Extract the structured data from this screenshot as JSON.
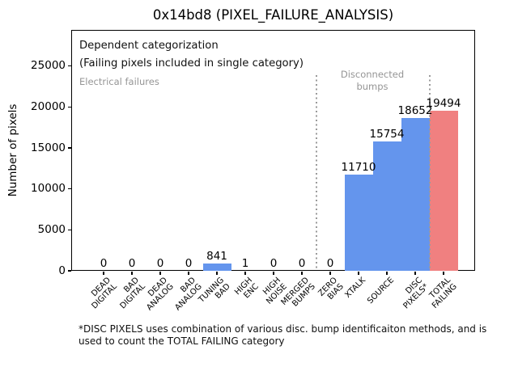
{
  "title": "0x14bd8 (PIXEL_FAILURE_ANALYSIS)",
  "annotations": {
    "dependent": "Dependent categorization\n(Failing pixels included in single category)",
    "electrical": "Electrical failures",
    "disconnected": "Disconnected\nbumps"
  },
  "footnote": "*DISC PIXELS uses combination of various disc. bump identificaiton methods, and is\nused to count the TOTAL FAILING category",
  "colors": {
    "bar_blue": "#6495ED",
    "bar_red": "#F08080",
    "gray_label": "#959595"
  },
  "chart_data": {
    "type": "bar",
    "title": "0x14bd8 (PIXEL_FAILURE_ANALYSIS)",
    "xlabel": "",
    "ylabel": "Number of pixels",
    "categories": [
      "DEAD\nDIGITAL",
      "BAD\nDIGITAL",
      "DEAD\nANALOG",
      "BAD\nANALOG",
      "TUNING\nBAD",
      "HIGH\nENC",
      "HIGH\nNOISE",
      "MERGED\nBUMPS",
      "ZERO\nBIAS",
      "XTALK",
      "SOURCE",
      "DISC\nPIXELS*",
      "TOTAL\nFAILING"
    ],
    "values": [
      0,
      0,
      0,
      0,
      841,
      1,
      0,
      0,
      0,
      11710,
      15754,
      18652,
      19494
    ],
    "bar_colors": [
      "#6495ED",
      "#6495ED",
      "#6495ED",
      "#6495ED",
      "#6495ED",
      "#6495ED",
      "#6495ED",
      "#6495ED",
      "#6495ED",
      "#6495ED",
      "#6495ED",
      "#6495ED",
      "#F08080"
    ],
    "bar_value_labels": [
      "0",
      "0",
      "0",
      "0",
      "841",
      "1",
      "0",
      "0",
      "0",
      "11710",
      "15754",
      "18652",
      "19494"
    ],
    "yticks": [
      0,
      5000,
      10000,
      15000,
      20000,
      25000
    ],
    "ylim": [
      0,
      29400
    ],
    "grid": false,
    "legend": null,
    "separators_before_index": [
      8,
      12
    ],
    "region_labels": [
      "Electrical failures",
      "Disconnected bumps"
    ]
  }
}
